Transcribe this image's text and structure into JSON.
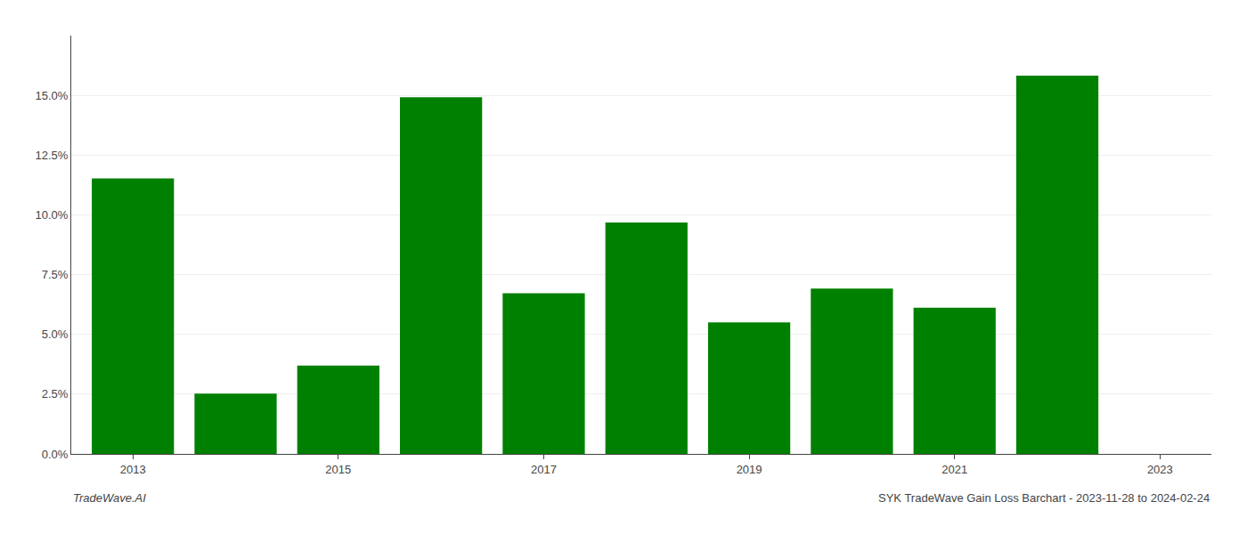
{
  "chart_data": {
    "type": "bar",
    "x": [
      2013,
      2014,
      2015,
      2016,
      2017,
      2018,
      2019,
      2020,
      2021,
      2022
    ],
    "values": [
      0.1152,
      0.0252,
      0.037,
      0.1492,
      0.0672,
      0.0968,
      0.055,
      0.0692,
      0.0612,
      0.1582
    ],
    "color": "#008000",
    "xlim": [
      2012.4,
      2023.5
    ],
    "xticks": [
      2013,
      2015,
      2017,
      2019,
      2021,
      2023
    ],
    "ylim": [
      0,
      0.175
    ],
    "yticks": [
      {
        "value": 0.0,
        "label": "0.0%"
      },
      {
        "value": 0.025,
        "label": "2.5%"
      },
      {
        "value": 0.05,
        "label": "5.0%"
      },
      {
        "value": 0.075,
        "label": "7.5%"
      },
      {
        "value": 0.1,
        "label": "10.0%"
      },
      {
        "value": 0.125,
        "label": "12.5%"
      },
      {
        "value": 0.15,
        "label": "15.0%"
      }
    ],
    "grid": true,
    "annotations": [
      "TradeWave.AI",
      "SYK TradeWave Gain Loss Barchart - 2023-11-28 to 2024-02-24"
    ]
  }
}
